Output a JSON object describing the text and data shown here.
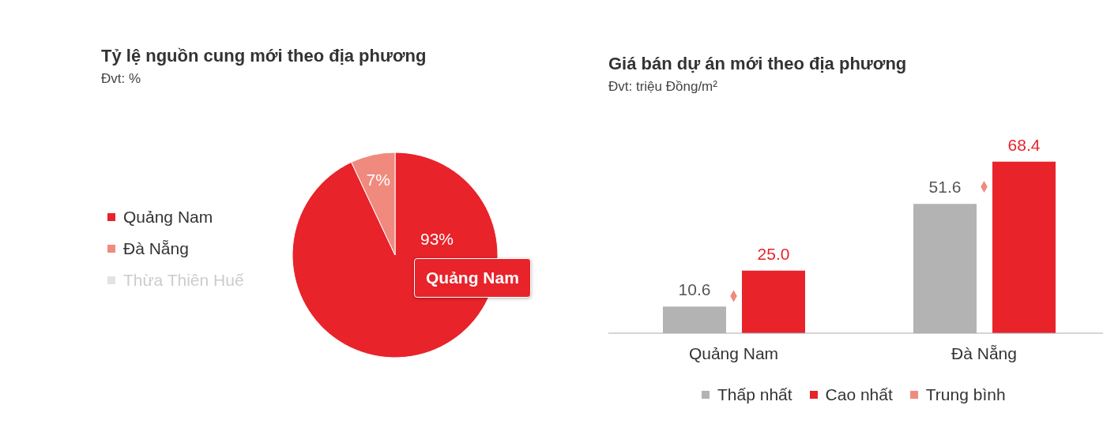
{
  "chart_data": [
    {
      "type": "pie",
      "title": "Tỷ lệ nguồn cung mới theo địa phương",
      "subtitle": "Đvt: %",
      "categories": [
        "Quảng Nam",
        "Đà Nẵng",
        "Thừa Thiên Huế"
      ],
      "values": [
        93,
        7,
        null
      ],
      "colors": [
        "#e8232a",
        "#f08a7e",
        "#e3e3e3"
      ],
      "value_labels": [
        "93%",
        "7%",
        null
      ],
      "legend": "left",
      "annotations": [
        "Quảng Nam"
      ]
    },
    {
      "type": "bar",
      "title": "Giá bán dự án mới theo địa phương",
      "subtitle": "Đvt: triệu Đồng/m²",
      "categories": [
        "Quảng Nam",
        "Đà Nẵng"
      ],
      "tick_labels": "x",
      "legend": "bottom",
      "series": [
        {
          "name": "Thấp nhất",
          "color": "#b3b3b3",
          "values": [
            10.6,
            51.6
          ],
          "value_labels": [
            "10.6",
            "51.6"
          ]
        },
        {
          "name": "Cao nhất",
          "color": "#e8232a",
          "values": [
            25.0,
            68.4
          ],
          "value_labels": [
            "25.0",
            "68.4"
          ]
        },
        {
          "name": "Trung bình",
          "type": "scatter",
          "marker": "diamond",
          "color": "#f08a7e",
          "values": [
            14.8,
            58.4
          ]
        }
      ]
    }
  ]
}
